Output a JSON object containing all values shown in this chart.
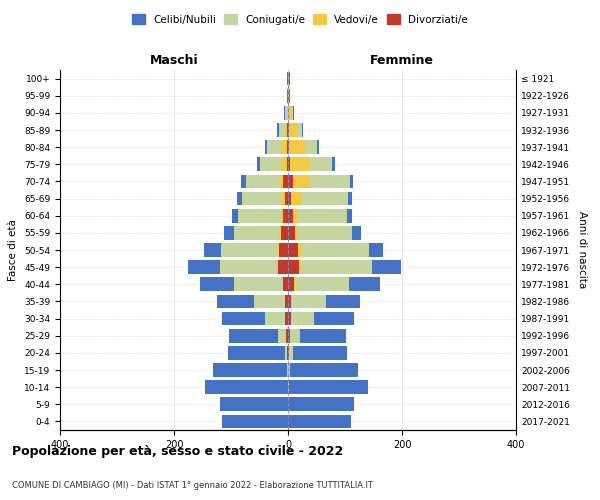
{
  "age_groups": [
    "0-4",
    "5-9",
    "10-14",
    "15-19",
    "20-24",
    "25-29",
    "30-34",
    "35-39",
    "40-44",
    "45-49",
    "50-54",
    "55-59",
    "60-64",
    "65-69",
    "70-74",
    "75-79",
    "80-84",
    "85-89",
    "90-94",
    "95-99",
    "100+"
  ],
  "birth_years": [
    "2017-2021",
    "2012-2016",
    "2007-2011",
    "2002-2006",
    "1997-2001",
    "1992-1996",
    "1987-1991",
    "1982-1986",
    "1977-1981",
    "1972-1976",
    "1967-1971",
    "1962-1966",
    "1957-1961",
    "1952-1956",
    "1947-1951",
    "1942-1946",
    "1937-1941",
    "1932-1936",
    "1927-1931",
    "1922-1926",
    "≤ 1921"
  ],
  "male_celibi": [
    115,
    120,
    145,
    130,
    100,
    85,
    75,
    65,
    60,
    55,
    30,
    18,
    12,
    10,
    8,
    5,
    4,
    3,
    2,
    1,
    2
  ],
  "male_coniugati": [
    0,
    0,
    0,
    2,
    5,
    15,
    35,
    55,
    85,
    100,
    100,
    80,
    75,
    70,
    60,
    40,
    25,
    10,
    3,
    0,
    0
  ],
  "male_vedovi": [
    0,
    0,
    0,
    0,
    0,
    0,
    0,
    0,
    1,
    2,
    2,
    3,
    4,
    5,
    6,
    8,
    10,
    5,
    2,
    0,
    0
  ],
  "male_divorziati": [
    0,
    0,
    0,
    0,
    1,
    3,
    5,
    5,
    8,
    18,
    15,
    12,
    8,
    5,
    8,
    2,
    1,
    1,
    0,
    0,
    0
  ],
  "female_celibi": [
    110,
    115,
    140,
    120,
    95,
    80,
    70,
    60,
    55,
    50,
    25,
    15,
    10,
    8,
    6,
    5,
    4,
    3,
    2,
    1,
    2
  ],
  "female_coniugati": [
    0,
    0,
    1,
    3,
    8,
    18,
    40,
    60,
    95,
    125,
    120,
    95,
    85,
    80,
    70,
    40,
    18,
    8,
    3,
    1,
    0
  ],
  "female_vedovi": [
    0,
    0,
    0,
    0,
    0,
    0,
    0,
    1,
    2,
    3,
    4,
    6,
    10,
    20,
    30,
    35,
    30,
    15,
    5,
    1,
    1
  ],
  "female_divorziati": [
    0,
    0,
    0,
    0,
    1,
    3,
    5,
    5,
    10,
    20,
    18,
    12,
    8,
    5,
    8,
    3,
    2,
    1,
    0,
    0,
    0
  ],
  "colors": {
    "celibi": "#4472c4",
    "coniugati": "#c5d5a0",
    "vedovi": "#f5c842",
    "divorziati": "#c0392b"
  },
  "title": "Popolazione per età, sesso e stato civile - 2022",
  "subtitle": "COMUNE DI CAMBIAGO (MI) - Dati ISTAT 1° gennaio 2022 - Elaborazione TUTTITALIA.IT",
  "xlabel_left": "Maschi",
  "xlabel_right": "Femmine",
  "ylabel_left": "Fasce di età",
  "ylabel_right": "Anni di nascita",
  "xlim": 400,
  "legend_labels": [
    "Celibi/Nubili",
    "Coniugati/e",
    "Vedovi/e",
    "Divorziati/e"
  ],
  "bg_color": "#ffffff",
  "grid_color": "#cccccc"
}
